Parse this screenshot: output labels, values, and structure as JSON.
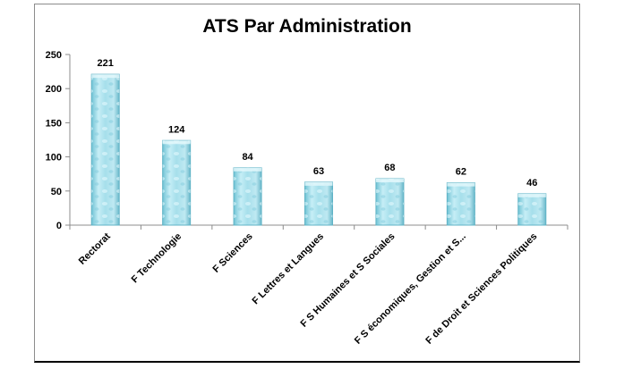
{
  "chart_data": {
    "type": "bar",
    "title": "ATS Par Administration",
    "categories": [
      "Rectorat",
      "F Technologie",
      "F Sciences",
      "F Lettres et Langues",
      "F S Humaines et S Sociales",
      "F S économiques, Gestion et S...",
      "F de Droit et Sciences Politiques"
    ],
    "values": [
      221,
      124,
      84,
      63,
      68,
      62,
      46
    ],
    "ylim": [
      0,
      250
    ],
    "yticks": [
      0,
      50,
      100,
      150,
      200,
      250
    ],
    "grid": false,
    "legend": "none",
    "bar_color": "#a8e0ec",
    "bar_edge_color": "#5fb3c6"
  }
}
